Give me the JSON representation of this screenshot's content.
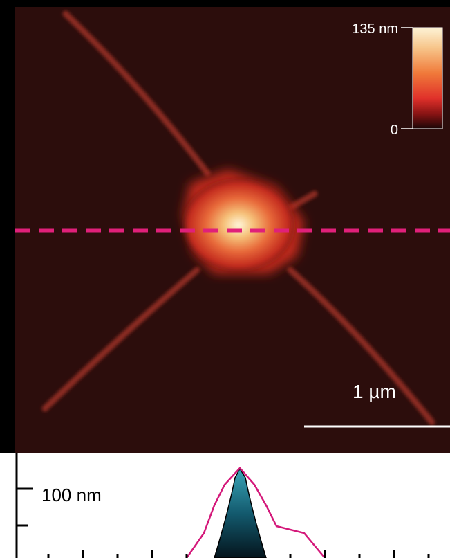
{
  "colorbar": {
    "max_label": "135 nm",
    "min_label": "0"
  },
  "scale_bar": {
    "label": "1 µm"
  },
  "profile": {
    "axis_label": "100 nm"
  }
}
